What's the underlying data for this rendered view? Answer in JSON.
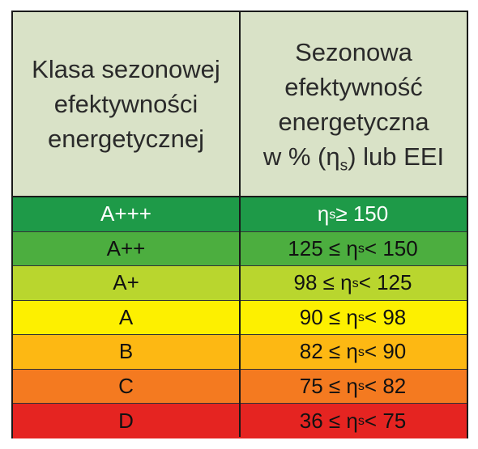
{
  "header": {
    "col1_lines": [
      "Klasa sezonowej",
      "efektywności",
      "energetycznej"
    ],
    "col2_lines": [
      "Sezonowa",
      "efektywność",
      "energetyczna"
    ],
    "col2_last": {
      "pre": "w % (η",
      "sub": "s",
      "post": ") lub EEI"
    }
  },
  "rows": [
    {
      "class": "A+++",
      "pre": "η",
      "post": " ≥ 150",
      "color": "#1e9a48",
      "text_color": "#ffffff"
    },
    {
      "class": "A++",
      "pre": "125 ≤ η",
      "post": " < 150",
      "color": "#4cae3f",
      "text_color": "#111111"
    },
    {
      "class": "A+",
      "pre": "98 ≤ η",
      "post": " < 125",
      "color": "#b9d62e",
      "text_color": "#111111"
    },
    {
      "class": "A",
      "pre": "90 ≤ η",
      "post": " < 98",
      "color": "#fdf000",
      "text_color": "#111111"
    },
    {
      "class": "B",
      "pre": "82 ≤ η",
      "post": " < 90",
      "color": "#fdb813",
      "text_color": "#111111"
    },
    {
      "class": "C",
      "pre": "75 ≤ η",
      "post": " < 82",
      "color": "#f47a20",
      "text_color": "#111111"
    },
    {
      "class": "D",
      "pre": "36 ≤ η",
      "post": " < 75",
      "color": "#e52421",
      "text_color": "#111111"
    }
  ],
  "subscript": "s"
}
